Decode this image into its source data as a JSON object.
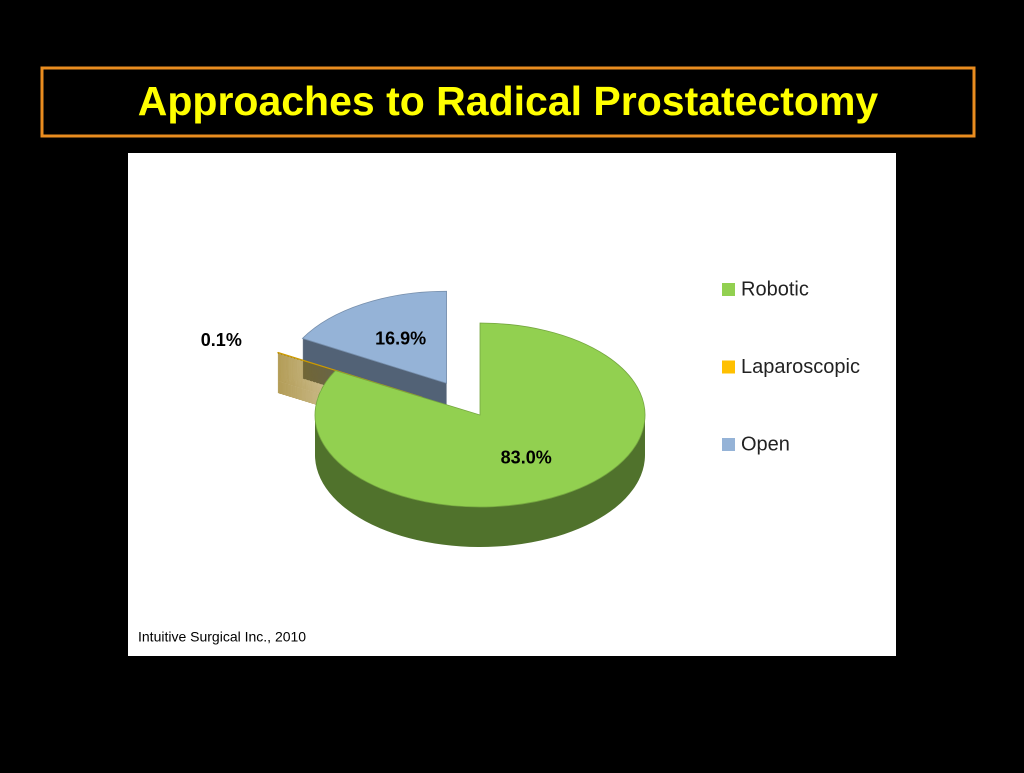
{
  "chart_data": {
    "type": "pie",
    "title": "Approaches to Radical Prostatectomy",
    "categories": [
      "Robotic",
      "Laparoscopic",
      "Open"
    ],
    "values": [
      83.0,
      0.1,
      16.9
    ],
    "value_labels": [
      "83.0%",
      "0.1%",
      "16.9%"
    ],
    "colors": [
      "#92d050",
      "#ffc000",
      "#95b3d7"
    ],
    "legend": "right",
    "source": "Intuitive Surgical Inc., 2010"
  }
}
